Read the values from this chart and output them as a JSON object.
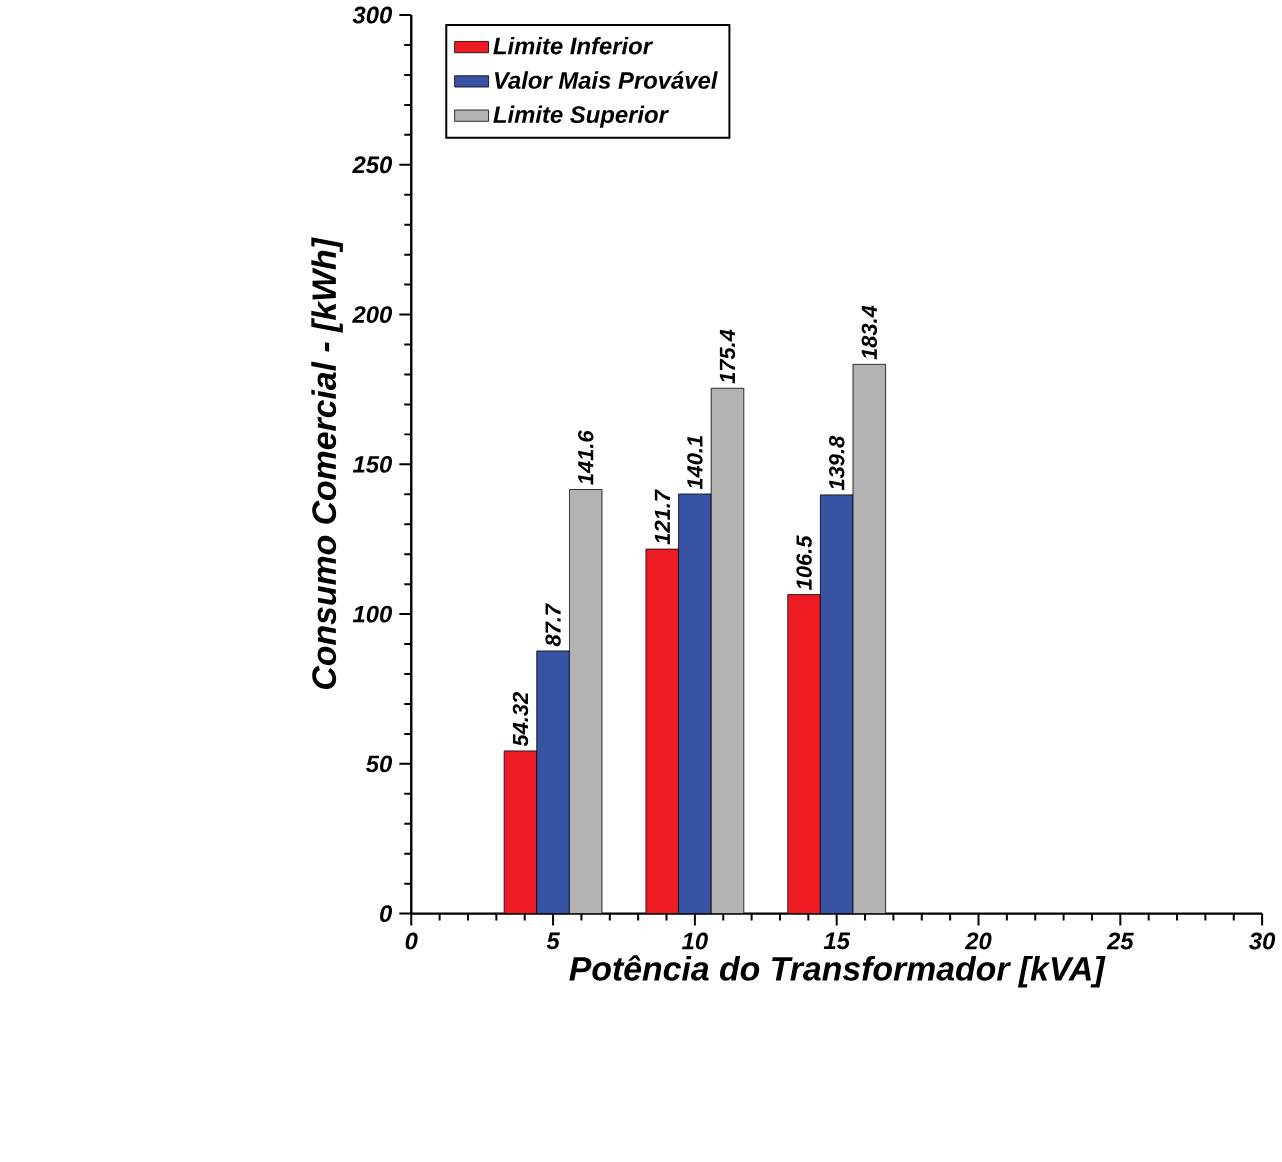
{
  "chart_data": {
    "type": "bar",
    "xlabel": "Potência do Transformador [kVA]",
    "ylabel": "Consumo Comercial - [kWh]",
    "x": [
      5,
      10,
      15
    ],
    "series": [
      {
        "name": "Limite Inferior",
        "color": "#ed1c24",
        "values": [
          54.32,
          121.7,
          106.5
        ],
        "value_labels": [
          "54.32",
          "121.7",
          "106.5"
        ]
      },
      {
        "name": "Valor Mais Provável",
        "color": "#3953a4",
        "values": [
          87.7,
          140.1,
          139.8
        ],
        "value_labels": [
          "87.7",
          "140.1",
          "139.8"
        ]
      },
      {
        "name": "Limite Superior",
        "color": "#b3b3b3",
        "values": [
          141.6,
          175.4,
          183.4
        ],
        "value_labels": [
          "141.6",
          "175.4",
          "183.4"
        ]
      }
    ],
    "xlim": [
      0,
      30
    ],
    "xticks": [
      0,
      5,
      10,
      15,
      20,
      25,
      30
    ],
    "ylim": [
      0,
      300
    ],
    "yticks": [
      0,
      50,
      100,
      150,
      200,
      250,
      300
    ],
    "grid": false,
    "legend": "top left"
  }
}
